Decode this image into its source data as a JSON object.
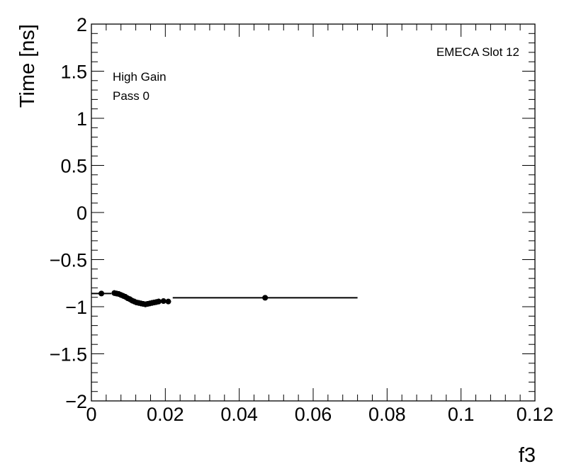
{
  "chart_data": {
    "type": "scatter",
    "title": "",
    "xlabel": "f3",
    "ylabel": "Time [ns]",
    "xlim": [
      0,
      0.12
    ],
    "ylim": [
      -2,
      2
    ],
    "xticks": [
      0,
      0.02,
      0.04,
      0.06,
      0.08,
      0.1,
      0.12
    ],
    "xtick_labels": [
      "0",
      "0.02",
      "0.04",
      "0.06",
      "0.08",
      "0.1",
      "0.12"
    ],
    "yticks": [
      -2,
      -1.5,
      -1,
      -0.5,
      0,
      0.5,
      1,
      1.5,
      2
    ],
    "ytick_labels": [
      "−2",
      "−1.5",
      "−1",
      "−0.5",
      "0",
      "0.5",
      "1",
      "1.5",
      "2"
    ],
    "grid": false,
    "annotations": {
      "gain": "High Gain",
      "pass": "Pass 0",
      "slot": "EMECA Slot 12"
    },
    "series": [
      {
        "points": [
          {
            "x": 0.0027,
            "y": -0.86,
            "xerr": 0.0027,
            "yerr": 0.005
          },
          {
            "x": 0.0062,
            "y": -0.855,
            "xerr": 0.0002,
            "yerr": 0.03
          },
          {
            "x": 0.0068,
            "y": -0.86,
            "xerr": 0.0002,
            "yerr": 0.03
          },
          {
            "x": 0.0074,
            "y": -0.865,
            "xerr": 0.0002,
            "yerr": 0.03
          },
          {
            "x": 0.008,
            "y": -0.875,
            "xerr": 0.0002,
            "yerr": 0.03
          },
          {
            "x": 0.0086,
            "y": -0.885,
            "xerr": 0.0002,
            "yerr": 0.03
          },
          {
            "x": 0.0092,
            "y": -0.895,
            "xerr": 0.0002,
            "yerr": 0.03
          },
          {
            "x": 0.0098,
            "y": -0.91,
            "xerr": 0.0002,
            "yerr": 0.03
          },
          {
            "x": 0.0104,
            "y": -0.92,
            "xerr": 0.0002,
            "yerr": 0.03
          },
          {
            "x": 0.011,
            "y": -0.935,
            "xerr": 0.0002,
            "yerr": 0.03
          },
          {
            "x": 0.0116,
            "y": -0.945,
            "xerr": 0.0002,
            "yerr": 0.03
          },
          {
            "x": 0.0122,
            "y": -0.955,
            "xerr": 0.0002,
            "yerr": 0.03
          },
          {
            "x": 0.0128,
            "y": -0.96,
            "xerr": 0.0002,
            "yerr": 0.03
          },
          {
            "x": 0.0134,
            "y": -0.965,
            "xerr": 0.0002,
            "yerr": 0.03
          },
          {
            "x": 0.014,
            "y": -0.97,
            "xerr": 0.0002,
            "yerr": 0.03
          },
          {
            "x": 0.0146,
            "y": -0.975,
            "xerr": 0.0002,
            "yerr": 0.03
          },
          {
            "x": 0.0152,
            "y": -0.97,
            "xerr": 0.0002,
            "yerr": 0.03
          },
          {
            "x": 0.0158,
            "y": -0.965,
            "xerr": 0.0002,
            "yerr": 0.03
          },
          {
            "x": 0.0164,
            "y": -0.96,
            "xerr": 0.0002,
            "yerr": 0.03
          },
          {
            "x": 0.017,
            "y": -0.955,
            "xerr": 0.0002,
            "yerr": 0.03
          },
          {
            "x": 0.0176,
            "y": -0.95,
            "xerr": 0.0002,
            "yerr": 0.03
          },
          {
            "x": 0.0182,
            "y": -0.945,
            "xerr": 0.0002,
            "yerr": 0.03
          },
          {
            "x": 0.0195,
            "y": -0.94,
            "xerr": 0.0004,
            "yerr": 0.025
          },
          {
            "x": 0.0208,
            "y": -0.945,
            "xerr": 0.0004,
            "yerr": 0.025
          },
          {
            "x": 0.047,
            "y": -0.905,
            "xerr": 0.025,
            "yerr": 0.01
          }
        ]
      }
    ]
  }
}
